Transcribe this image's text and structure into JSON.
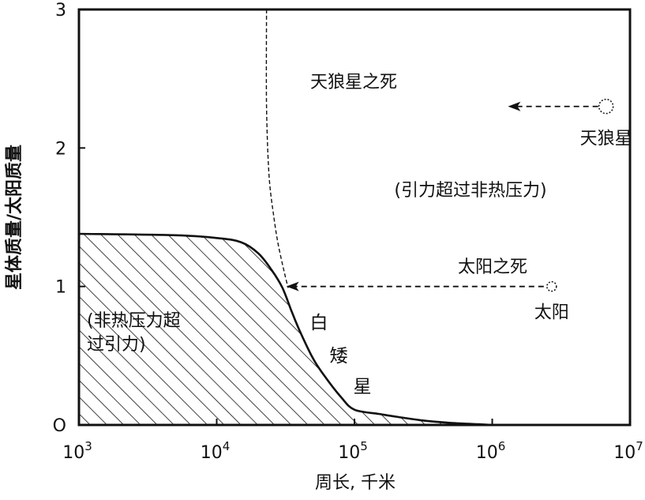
{
  "chart_data": {
    "type": "area",
    "xscale": "log",
    "xlim": [
      1000,
      10000000
    ],
    "ylim": [
      0,
      3
    ],
    "xlabel": "周长, 千米",
    "ylabel": "星体质量/太阳质量",
    "x_ticks": [
      {
        "value": 1000,
        "base": "10",
        "exp": "3"
      },
      {
        "value": 10000,
        "base": "10",
        "exp": "4"
      },
      {
        "value": 100000,
        "base": "10",
        "exp": "5"
      },
      {
        "value": 1000000,
        "base": "10",
        "exp": "6"
      },
      {
        "value": 10000000,
        "base": "10",
        "exp": "7"
      }
    ],
    "y_ticks": [
      {
        "value": 0,
        "label": "O"
      },
      {
        "value": 1,
        "label": "1"
      },
      {
        "value": 2,
        "label": "2"
      },
      {
        "value": 3,
        "label": "3"
      }
    ],
    "white_dwarf_curve": {
      "x": [
        1000,
        5000,
        10000,
        15000,
        20000,
        25000,
        30000,
        35000,
        40000,
        50000,
        60000,
        80000,
        100000,
        150000,
        200000,
        300000,
        500000,
        800000,
        1000000
      ],
      "y": [
        1.38,
        1.37,
        1.35,
        1.32,
        1.24,
        1.12,
        0.99,
        0.82,
        0.68,
        0.48,
        0.36,
        0.2,
        0.11,
        0.08,
        0.06,
        0.035,
        0.015,
        0.005,
        0.0
      ]
    },
    "boundary_curve": {
      "x": [
        23000,
        23000,
        24000,
        26000,
        28000,
        31000,
        33000
      ],
      "y": [
        3.0,
        2.3,
        1.8,
        1.5,
        1.3,
        1.1,
        0.99
      ]
    },
    "stars": [
      {
        "name": "天狼星",
        "x": 6700000,
        "y": 2.3
      },
      {
        "name": "太阳",
        "x": 2700000,
        "y": 1.0
      }
    ],
    "arrows": [
      {
        "label": "天狼星之死",
        "from": [
          6700000,
          2.3
        ],
        "to": [
          1300000,
          2.3
        ]
      },
      {
        "label": "太阳之死",
        "from": [
          2700000,
          1.0
        ],
        "to": [
          32000,
          1.0
        ]
      }
    ],
    "annotations": {
      "gravity_wins": "(引力超过非热压力)",
      "pressure_wins_line1": "(非热压力超",
      "pressure_wins_line2": "过引力)",
      "white_dwarf": [
        "白",
        "矮",
        "星"
      ]
    }
  }
}
